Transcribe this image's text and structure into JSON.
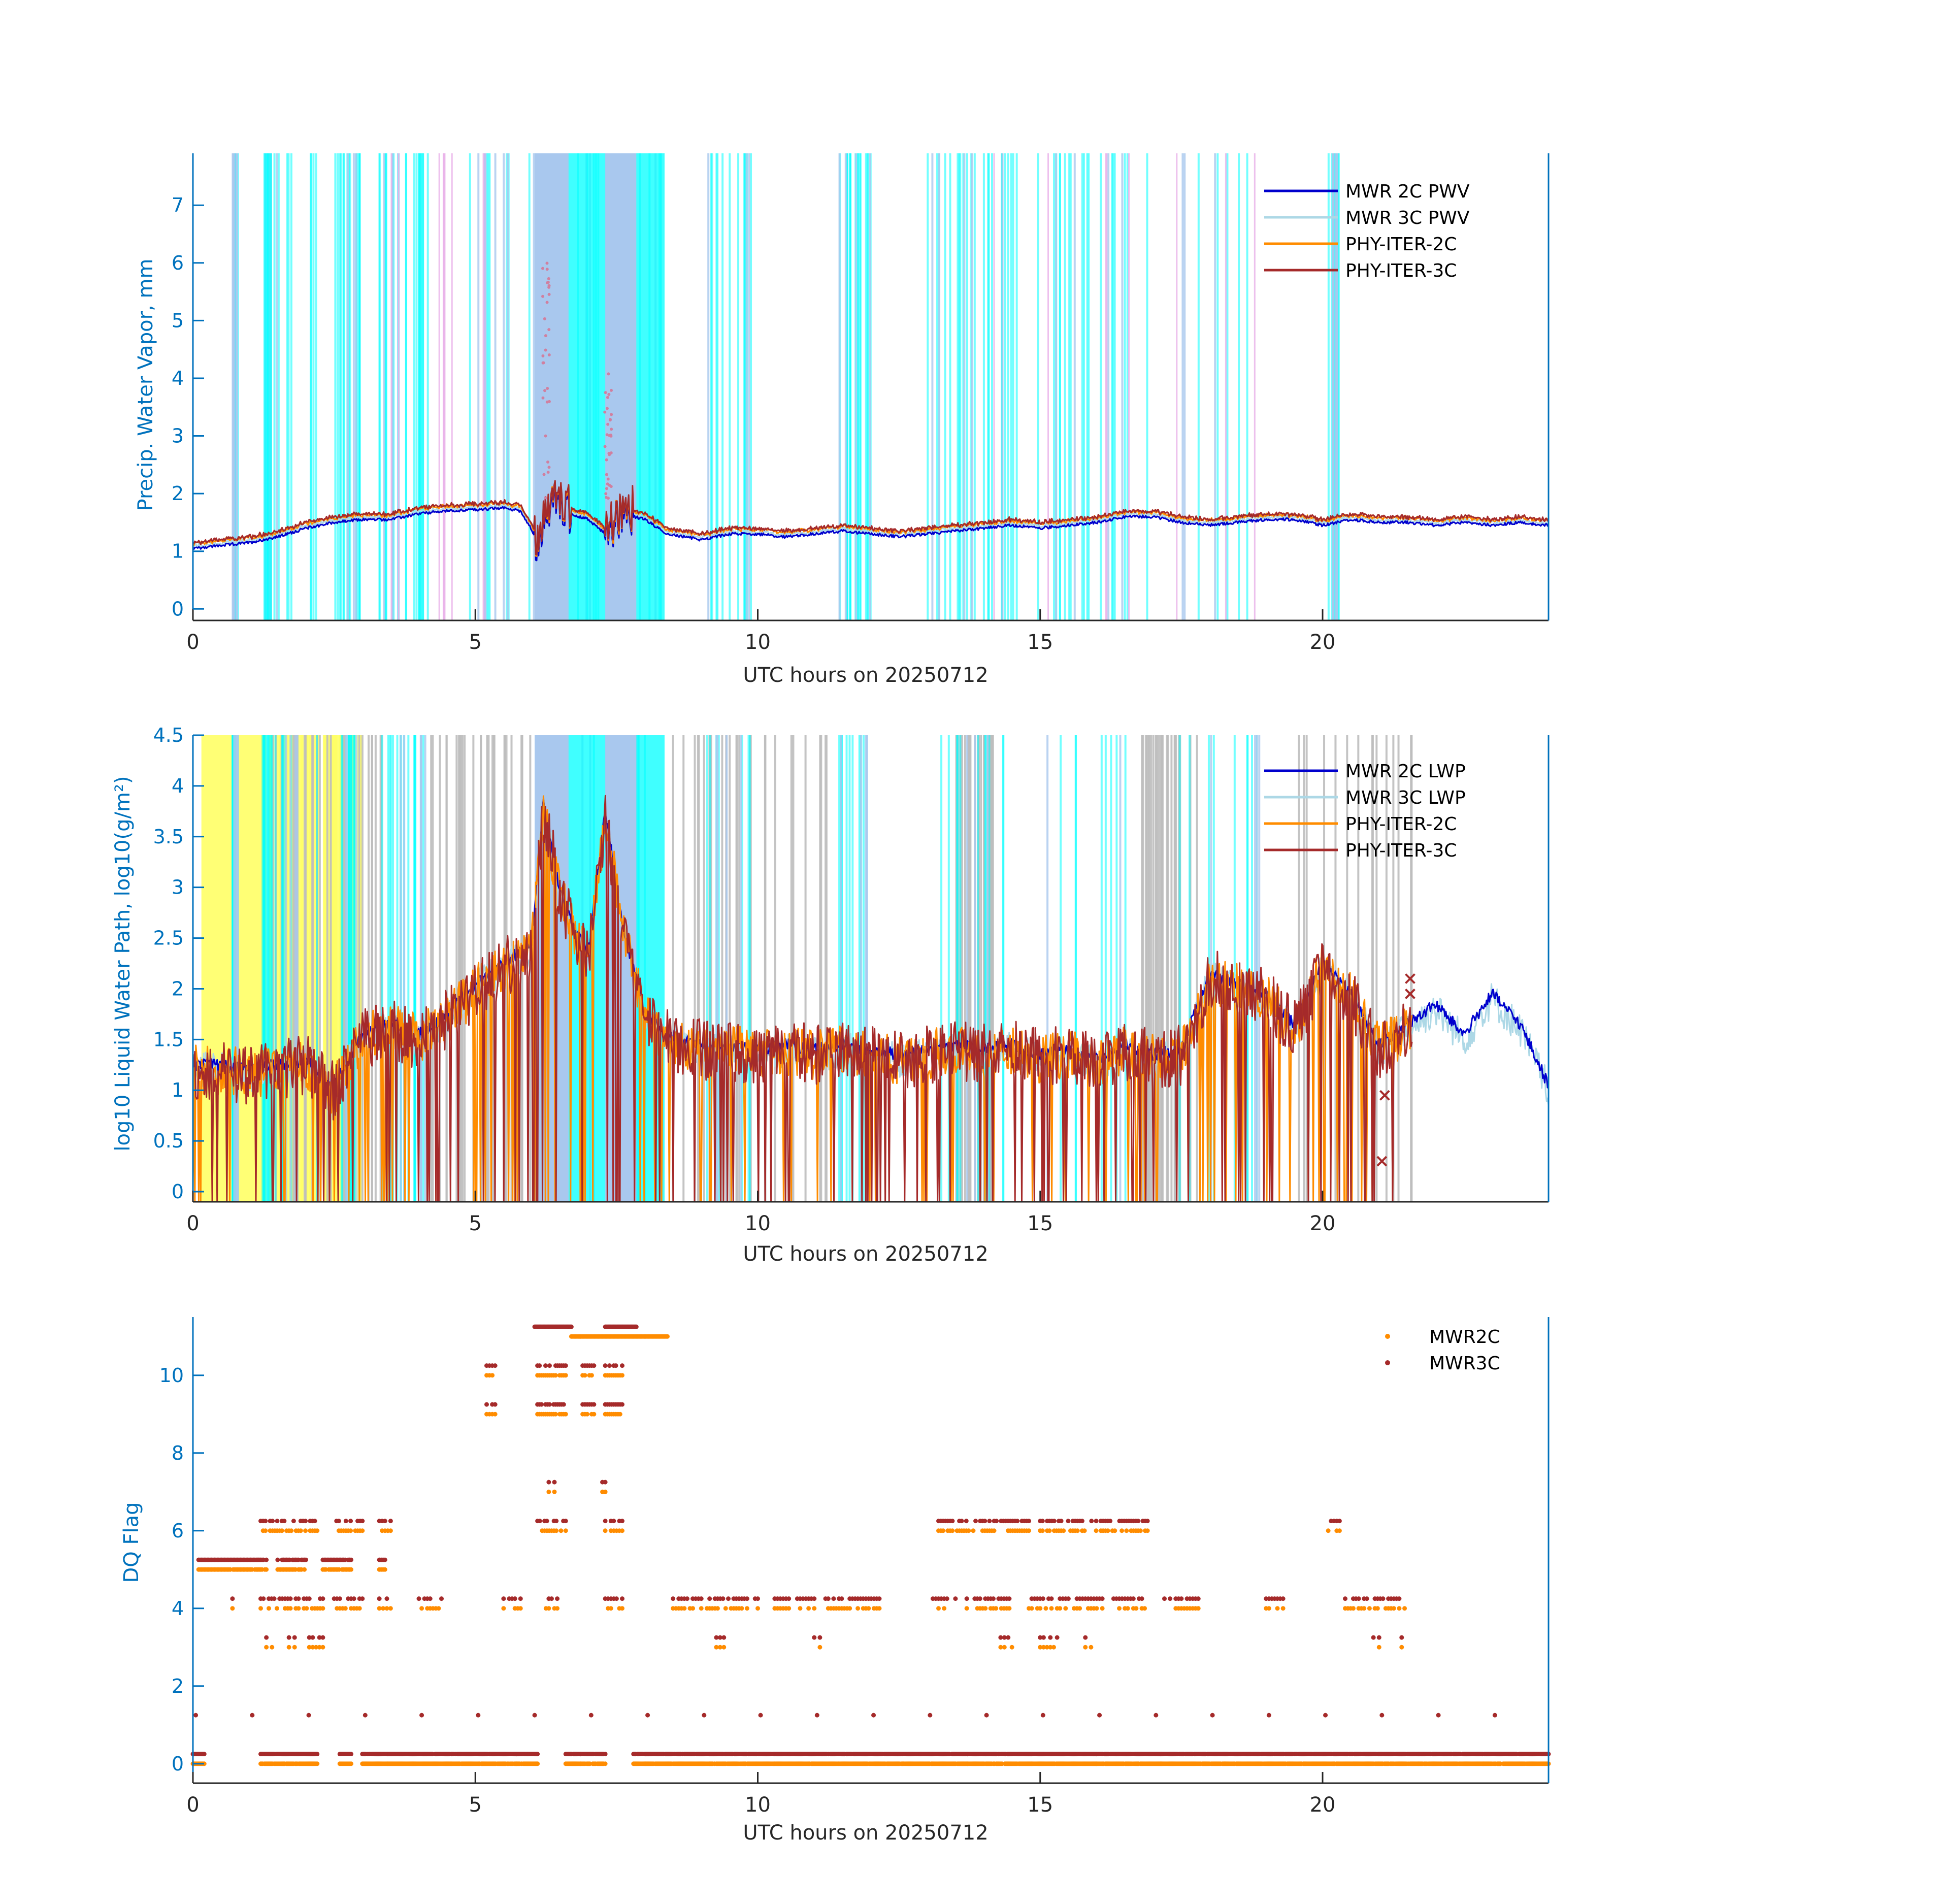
{
  "colors": {
    "axis": "#0072BD",
    "text": "#262626",
    "mwr2c": "#0000CD",
    "mwr3c": "#ADD8E6",
    "phy2c": "#FF8C00",
    "phy3c": "#A52A2A",
    "precip_shade": "#00FFFF",
    "heavy_shade": "#A9C8EE",
    "yellow_shade": "#FFFF66",
    "gray_shade": "#BEBEBE",
    "pink_shade": "#E8B0E8"
  },
  "chart_data": [
    {
      "type": "line",
      "id": "pwv",
      "xlabel": "UTC hours on 20250712",
      "ylabel": "Precip. Water Vapor, mm",
      "xlim": [
        0,
        24
      ],
      "ylim": [
        -0.2,
        7.9
      ],
      "xticks": [
        0,
        5,
        10,
        15,
        20
      ],
      "yticks": [
        0,
        1,
        2,
        3,
        4,
        5,
        6,
        7
      ],
      "legend": [
        "MWR 2C PWV",
        "MWR 3C PWV",
        "PHY-ITER-2C",
        "PHY-ITER-3C"
      ],
      "legend_location": "top-right",
      "anchors": {
        "x": [
          0,
          0.5,
          1,
          1.5,
          2,
          2.5,
          3,
          3.5,
          4,
          4.5,
          5,
          5.5,
          5.8,
          6.1,
          6.4,
          6.7,
          7.0,
          7.3,
          7.6,
          8.0,
          8.4,
          9.0,
          9.5,
          10,
          10.5,
          11,
          11.5,
          12,
          12.5,
          13,
          13.5,
          14,
          14.5,
          15,
          15.5,
          16,
          16.5,
          17,
          17.5,
          18,
          18.5,
          19,
          19.5,
          20,
          20.5,
          21,
          21.5,
          22,
          22.5,
          23,
          23.5,
          24
        ],
        "pwv2c": [
          1.05,
          1.1,
          1.15,
          1.25,
          1.4,
          1.5,
          1.55,
          1.55,
          1.65,
          1.7,
          1.72,
          1.75,
          1.7,
          1.2,
          1.9,
          1.65,
          1.55,
          1.3,
          1.65,
          1.55,
          1.3,
          1.2,
          1.3,
          1.3,
          1.25,
          1.3,
          1.35,
          1.3,
          1.25,
          1.3,
          1.35,
          1.4,
          1.45,
          1.4,
          1.45,
          1.5,
          1.6,
          1.6,
          1.5,
          1.45,
          1.5,
          1.55,
          1.55,
          1.45,
          1.55,
          1.5,
          1.5,
          1.45,
          1.5,
          1.45,
          1.5,
          1.45
        ]
      },
      "heavy_spans": [
        [
          6.05,
          6.65
        ],
        [
          7.3,
          7.85
        ]
      ],
      "precip_spans": [
        [
          1.25,
          1.4
        ],
        [
          6.05,
          8.35
        ]
      ]
    },
    {
      "type": "line",
      "id": "lwp",
      "xlabel": "UTC hours on 20250712",
      "ylabel": "log10 Liquid Water Path, log10(g/m²)",
      "xlim": [
        0,
        24
      ],
      "ylim": [
        -0.1,
        4.5
      ],
      "xticks": [
        0,
        5,
        10,
        15,
        20
      ],
      "yticks": [
        0,
        0.5,
        1,
        1.5,
        2,
        2.5,
        3,
        3.5,
        4,
        4.5
      ],
      "ytick_labels": [
        "0",
        "0.5",
        "1",
        "1.5",
        "2",
        "2.5",
        "3",
        "3.5",
        "4",
        "4.5"
      ],
      "legend": [
        "MWR 2C LWP",
        "MWR 3C LWP",
        "PHY-ITER-2C",
        "PHY-ITER-3C"
      ],
      "legend_location": "top-right",
      "anchors": {
        "x": [
          0,
          0.5,
          1,
          1.5,
          2,
          2.5,
          3,
          3.5,
          4,
          4.5,
          5,
          5.5,
          6.0,
          6.2,
          6.5,
          6.8,
          7.0,
          7.3,
          7.6,
          8.0,
          8.4,
          9,
          9.5,
          10,
          10.5,
          11,
          11.5,
          12,
          12.5,
          13,
          13.5,
          14,
          14.5,
          15,
          15.5,
          16,
          16.5,
          17,
          17.5,
          18,
          18.5,
          19,
          19.5,
          20,
          20.5,
          21,
          21.5,
          22,
          22.5,
          23,
          23.5,
          24
        ],
        "lwp3c": [
          1.2,
          1.2,
          1.15,
          1.2,
          1.25,
          1.0,
          1.5,
          1.6,
          1.5,
          1.7,
          2.0,
          2.2,
          2.4,
          3.8,
          2.9,
          2.5,
          2.3,
          3.7,
          2.6,
          1.7,
          1.5,
          1.4,
          1.4,
          1.35,
          1.4,
          1.35,
          1.4,
          1.35,
          1.3,
          1.35,
          1.4,
          1.35,
          1.4,
          1.3,
          1.35,
          1.25,
          1.4,
          1.3,
          1.35,
          2.1,
          2.0,
          1.9,
          1.6,
          2.2,
          1.9,
          1.4,
          1.6,
          1.8,
          1.5,
          1.9,
          1.6,
          1.0
        ]
      },
      "yellow_spans": [
        [
          0.15,
          1.3
        ],
        [
          2.3,
          2.6
        ]
      ],
      "heavy_spans": [
        [
          6.05,
          6.65
        ],
        [
          7.3,
          7.85
        ]
      ],
      "precip_spans": [
        [
          1.25,
          1.4
        ],
        [
          6.05,
          8.35
        ]
      ]
    },
    {
      "type": "scatter",
      "id": "dq",
      "xlabel": "UTC hours on 20250712",
      "ylabel": "DQ Flag",
      "xlim": [
        0,
        24
      ],
      "ylim": [
        -0.5,
        11.5
      ],
      "xticks": [
        0,
        5,
        10,
        15,
        20
      ],
      "yticks": [
        0,
        2,
        4,
        6,
        8,
        10
      ],
      "legend": [
        "MWR2C",
        "MWR3C"
      ],
      "legend_location": "top-right",
      "bands": {
        "flag11": [
          [
            6.05,
            6.7
          ],
          [
            7.3,
            7.85
          ]
        ],
        "flag10_11": [
          [
            6.7,
            8.4
          ]
        ],
        "flag10": [
          [
            5.2,
            5.35
          ],
          [
            6.1,
            6.6
          ],
          [
            6.9,
            7.1
          ],
          [
            7.3,
            7.6
          ]
        ],
        "flag9": [
          [
            5.2,
            5.35
          ],
          [
            6.1,
            6.6
          ],
          [
            6.9,
            7.1
          ],
          [
            7.3,
            7.6
          ]
        ],
        "flag7": [
          [
            6.3,
            6.4
          ],
          [
            7.25,
            7.3
          ]
        ],
        "flag6": [
          [
            1.2,
            2.2
          ],
          [
            2.5,
            3.0
          ],
          [
            3.3,
            3.5
          ],
          [
            6.1,
            6.6
          ],
          [
            7.3,
            7.6
          ],
          [
            13.2,
            14.8
          ],
          [
            15.0,
            16.9
          ],
          [
            20.1,
            20.3
          ]
        ],
        "flag5": [
          [
            0.1,
            1.3
          ],
          [
            1.5,
            2.0
          ],
          [
            2.3,
            2.8
          ],
          [
            3.3,
            3.4
          ]
        ],
        "flag4": [
          [
            0.7,
            0.8
          ],
          [
            1.2,
            2.3
          ],
          [
            2.5,
            3.0
          ],
          [
            3.3,
            3.5
          ],
          [
            4.0,
            4.4
          ],
          [
            5.5,
            5.8
          ],
          [
            6.2,
            6.5
          ],
          [
            7.3,
            7.6
          ],
          [
            8.5,
            9.0
          ],
          [
            9.1,
            10.0
          ],
          [
            10.3,
            11.0
          ],
          [
            11.2,
            12.2
          ],
          [
            13.1,
            13.5
          ],
          [
            13.7,
            14.5
          ],
          [
            14.8,
            15.5
          ],
          [
            15.6,
            16.1
          ],
          [
            16.3,
            16.9
          ],
          [
            17.2,
            17.8
          ],
          [
            19.0,
            19.3
          ],
          [
            20.4,
            21.5
          ]
        ],
        "flag3": [
          [
            1.3,
            1.4
          ],
          [
            1.7,
            1.8
          ],
          [
            2.0,
            2.3
          ],
          [
            9.2,
            9.4
          ],
          [
            11.0,
            11.1
          ],
          [
            14.3,
            14.5
          ],
          [
            15.0,
            15.3
          ],
          [
            15.8,
            15.9
          ],
          [
            20.9,
            21.0
          ],
          [
            21.3,
            21.4
          ]
        ],
        "flag0": [
          [
            0,
            0.2
          ],
          [
            1.2,
            2.2
          ],
          [
            2.6,
            2.8
          ],
          [
            3.0,
            6.1
          ],
          [
            6.6,
            7.3
          ],
          [
            7.8,
            24.0
          ]
        ]
      }
    }
  ]
}
